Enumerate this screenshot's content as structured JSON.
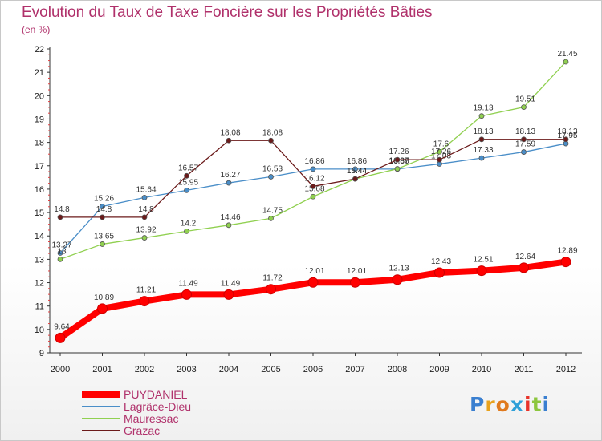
{
  "title": "Evolution du Taux de Taxe Foncière sur les Propriétés Bâties",
  "subtitle": "(en %)",
  "logo": {
    "text": "Proxiti",
    "colors": [
      "#3a7fd0",
      "#e8a21e",
      "#e07a1e",
      "#2fa0d8",
      "#e8332a",
      "#8cc63e",
      "#3a7fd0"
    ]
  },
  "chart_data": {
    "type": "line",
    "x": [
      "2000",
      "2001",
      "2002",
      "2003",
      "2004",
      "2005",
      "2006",
      "2007",
      "2008",
      "2009",
      "2010",
      "2011",
      "2012"
    ],
    "ylim": [
      9,
      22
    ],
    "yticks": [
      9,
      10,
      11,
      12,
      13,
      14,
      15,
      16,
      17,
      18,
      19,
      20,
      21,
      22
    ],
    "grid": false,
    "legend_position": "bottom-left",
    "series": [
      {
        "name": "PUYDANIEL",
        "color": "#ff0000",
        "values": [
          9.64,
          10.89,
          11.21,
          11.49,
          11.49,
          11.72,
          12.01,
          12.01,
          12.13,
          12.43,
          12.51,
          12.64,
          12.89
        ],
        "labels": [
          "9.64",
          "10.89",
          "11.21",
          "11.49",
          "11.49",
          "11.72",
          "12.01",
          "12.01",
          "12.13",
          "12.43",
          "12.51",
          "12.64",
          "12.89"
        ]
      },
      {
        "name": "Lagrâce-Dieu",
        "color": "#4a8ec8",
        "values": [
          13.27,
          15.26,
          15.64,
          15.95,
          16.27,
          16.53,
          16.86,
          16.86,
          16.86,
          17.08,
          17.33,
          17.59,
          17.95
        ],
        "labels": [
          "13.27",
          "15.26",
          "15.64",
          "15.95",
          "16.27",
          "16.53",
          "16.86",
          "16.86",
          "16.86",
          "17.08",
          "17.33",
          "17.59",
          "17.95"
        ]
      },
      {
        "name": "Mauressac",
        "color": "#90d050",
        "values": [
          13.0,
          13.65,
          13.92,
          14.2,
          14.46,
          14.75,
          15.68,
          16.44,
          16.87,
          17.6,
          19.13,
          19.51,
          21.45
        ],
        "labels": [
          "13",
          "13.65",
          "13.92",
          "14.2",
          "14.46",
          "14.75",
          "15.68",
          "16.44",
          "16.87",
          "17.6",
          "19.13",
          "19.51",
          "21.45"
        ]
      },
      {
        "name": "Grazac",
        "color": "#6b1a1a",
        "values": [
          14.8,
          14.8,
          14.8,
          16.57,
          18.08,
          18.08,
          16.12,
          16.44,
          17.26,
          17.26,
          18.13,
          18.13,
          18.13
        ],
        "labels": [
          "14.8",
          "14.8",
          "14.8",
          "16.57",
          "18.08",
          "18.08",
          "16.12",
          "16.44",
          "17.26",
          "17.26",
          "18.13",
          "18.13",
          "18.13"
        ]
      }
    ]
  }
}
